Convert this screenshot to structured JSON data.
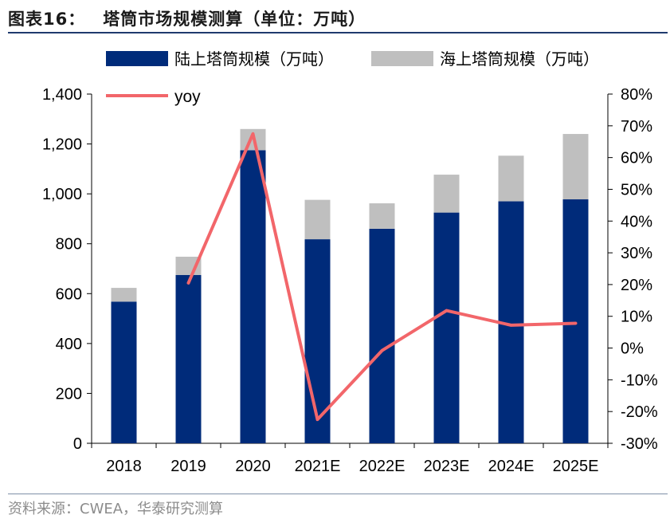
{
  "figure": {
    "label": "图表16：",
    "title": "塔筒市场规模测算（单位：万吨）",
    "source": "资料来源：CWEA，华泰研究测算"
  },
  "colors": {
    "onshore": "#002b7a",
    "offshore": "#bfbfbf",
    "yoy": "#f2666a",
    "axis": "#000000"
  },
  "chart_data": {
    "type": "bar",
    "stacked": true,
    "categories": [
      "2018",
      "2019",
      "2020",
      "2021E",
      "2022E",
      "2023E",
      "2024E",
      "2025E"
    ],
    "series": [
      {
        "name": "陆上塔筒规模（万吨）",
        "type": "bar",
        "axis": "left",
        "values": [
          568,
          675,
          1175,
          818,
          860,
          925,
          970,
          978
        ]
      },
      {
        "name": "海上塔筒规模（万吨）",
        "type": "bar",
        "axis": "left",
        "values": [
          55,
          73,
          85,
          158,
          102,
          152,
          183,
          262
        ]
      },
      {
        "name": "yoy",
        "type": "line",
        "axis": "right",
        "values": [
          null,
          20.5,
          67.5,
          -22.5,
          -0.8,
          11.8,
          7.2,
          7.8
        ]
      }
    ],
    "y_left": {
      "min": 0,
      "max": 1400,
      "step": 200,
      "tick_labels": [
        "0",
        "200",
        "400",
        "600",
        "800",
        "1,000",
        "1,200",
        "1,400"
      ]
    },
    "y_right": {
      "min": -30,
      "max": 80,
      "step": 10,
      "tick_labels": [
        "-30%",
        "-20%",
        "-10%",
        "0%",
        "10%",
        "20%",
        "30%",
        "40%",
        "50%",
        "60%",
        "70%",
        "80%"
      ]
    },
    "grid": false,
    "legend": "top"
  }
}
